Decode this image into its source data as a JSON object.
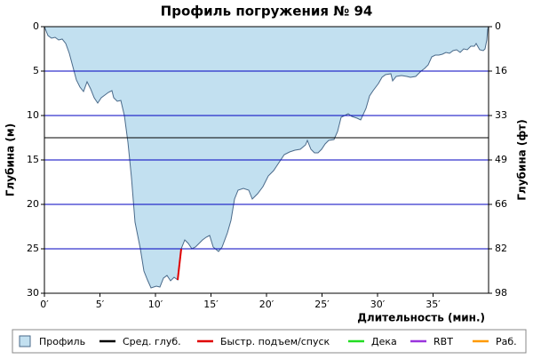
{
  "chart_data": {
    "type": "dive_profile",
    "title": "Профиль погружения № 94",
    "y_label": "Глубина (м)",
    "y2_label": "Глубина (фт)",
    "x_label": "Длительность (мин.)",
    "xlim": [
      0,
      40
    ],
    "ylim": [
      30,
      0
    ],
    "y2lim": [
      98.4,
      0
    ],
    "grid": true,
    "grid_color": "#0000c0",
    "xticks": [
      {
        "value": 0,
        "label": "0′"
      },
      {
        "value": 5,
        "label": "5′"
      },
      {
        "value": 10,
        "label": "10′"
      },
      {
        "value": 15,
        "label": "15′"
      },
      {
        "value": 20,
        "label": "20′"
      },
      {
        "value": 25,
        "label": "25′"
      },
      {
        "value": 30,
        "label": "30′"
      },
      {
        "value": 35,
        "label": "35′"
      }
    ],
    "yticks": [
      0,
      5,
      10,
      15,
      20,
      25,
      30
    ],
    "y2ticks": [
      0,
      {
        "value": 16.4,
        "label": "16"
      },
      {
        "value": 32.8,
        "label": "33"
      },
      {
        "value": 49.2,
        "label": "49"
      },
      {
        "value": 65.6,
        "label": "66"
      },
      {
        "value": 82,
        "label": "82"
      },
      {
        "value": 98.4,
        "label": "98"
      }
    ],
    "series": [
      {
        "name": "Профиль",
        "color": "#c2e0f0",
        "x": [
          0,
          0.32,
          0.64,
          0.96,
          1.28,
          1.6,
          1.92,
          2.24,
          2.56,
          2.88,
          3.2,
          3.52,
          3.84,
          4.16,
          4.48,
          4.8,
          5.12,
          5.44,
          5.76,
          6.08,
          6.24,
          6.56,
          6.88,
          7.2,
          7.52,
          7.84,
          8.16,
          8.64,
          8.96,
          9.28,
          9.6,
          10.08,
          10.4,
          10.72,
          11.04,
          11.36,
          11.68,
          12,
          12.32,
          12.64,
          12.96,
          13.28,
          13.6,
          13.92,
          14.24,
          14.56,
          14.88,
          15.2,
          15.68,
          16,
          16.48,
          16.8,
          17.12,
          17.44,
          17.92,
          18.4,
          18.72,
          19.2,
          19.68,
          20.16,
          20.64,
          21.12,
          21.6,
          22.08,
          22.56,
          23.04,
          23.52,
          23.68,
          24,
          24.32,
          24.64,
          24.96,
          25.28,
          25.6,
          26.08,
          26.4,
          26.72,
          27.04,
          27.36,
          27.68,
          28.16,
          28.48,
          28.96,
          29.28,
          29.6,
          30.08,
          30.4,
          30.72,
          31.2,
          31.36,
          31.68,
          32.16,
          32.64,
          32.96,
          33.44,
          33.92,
          34.24,
          34.56,
          34.88,
          35.2,
          35.52,
          35.84,
          36.16,
          36.48,
          36.8,
          37.12,
          37.44,
          37.76,
          38.08,
          38.4,
          38.72,
          38.88,
          39.2,
          39.52,
          39.68,
          39.84,
          39.92,
          40
        ],
        "values": [
          0,
          1,
          1.3,
          1.2,
          1.5,
          1.4,
          1.9,
          3,
          4.5,
          6,
          6.8,
          7.3,
          6.2,
          7,
          8,
          8.6,
          8,
          7.7,
          7.4,
          7.2,
          8,
          8.4,
          8.3,
          10,
          13,
          17,
          22,
          25,
          27.5,
          28.5,
          29.4,
          29.2,
          29.3,
          28.3,
          28,
          28.6,
          28.2,
          28.5,
          25,
          24,
          24.4,
          25,
          24.8,
          24.4,
          24,
          23.7,
          23.5,
          24.8,
          25.3,
          24.8,
          23.2,
          21.8,
          19.4,
          18.4,
          18.2,
          18.4,
          19.4,
          18.8,
          18,
          16.8,
          16.2,
          15.3,
          14.4,
          14.1,
          13.9,
          13.8,
          13.3,
          12.8,
          13.8,
          14.2,
          14.2,
          13.8,
          13.2,
          12.8,
          12.7,
          11.8,
          10.2,
          10,
          9.8,
          10.1,
          10.3,
          10.5,
          9.2,
          7.8,
          7.2,
          6.4,
          5.7,
          5.4,
          5.3,
          6.1,
          5.6,
          5.5,
          5.6,
          5.7,
          5.6,
          5,
          4.7,
          4.3,
          3.4,
          3.2,
          3.2,
          3.1,
          2.9,
          3,
          2.7,
          2.6,
          2.9,
          2.5,
          2.6,
          2.2,
          2.2,
          1.9,
          2.6,
          2.7,
          2.5,
          1.5,
          0.3,
          0
        ]
      },
      {
        "name": "Сред. глуб.",
        "color": "#000000",
        "value": 12.5
      },
      {
        "name": "Быстр. подъем/спуск",
        "color": "#e00000",
        "x": [
          12,
          12.32
        ],
        "values": [
          28.5,
          25
        ]
      },
      {
        "name": "Дека",
        "color": "#22dd22"
      },
      {
        "name": "RBT",
        "color": "#9933dd"
      },
      {
        "name": "Раб.",
        "color": "#ff9900"
      }
    ]
  }
}
